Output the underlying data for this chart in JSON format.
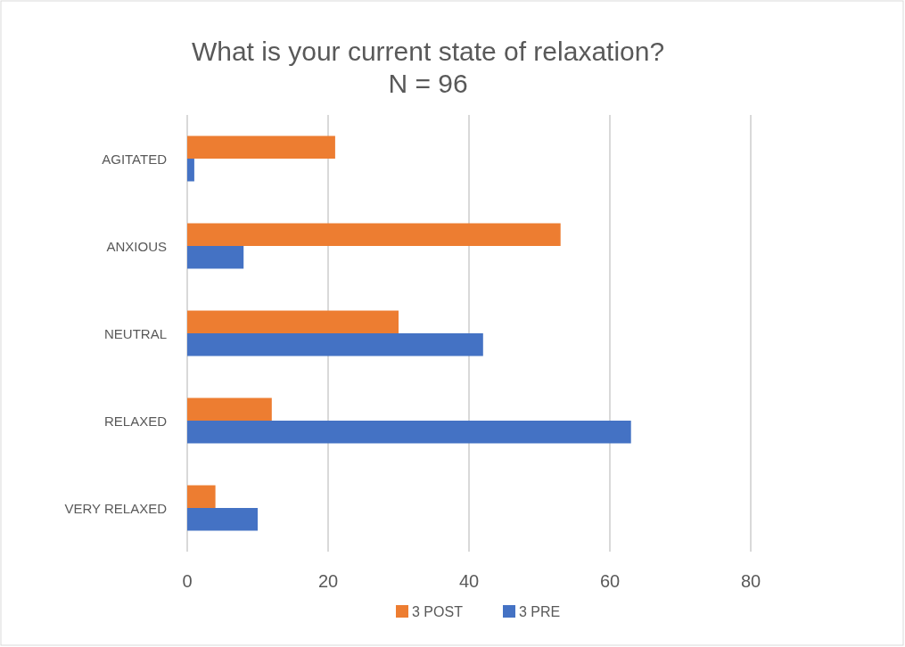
{
  "chart_data": {
    "type": "bar",
    "orientation": "horizontal",
    "title": "What is your current state of relaxation?\nN = 96",
    "categories": [
      "AGITATED",
      "ANXIOUS",
      "NEUTRAL",
      "RELAXED",
      "VERY RELAXED"
    ],
    "series": [
      {
        "name": "3 POST",
        "color": "#ed7d31",
        "values": [
          21,
          53,
          30,
          12,
          4
        ]
      },
      {
        "name": "3 PRE",
        "color": "#4472c4",
        "values": [
          1,
          8,
          42,
          63,
          10
        ]
      }
    ],
    "xlim": [
      0,
      80
    ],
    "xticks": [
      0,
      20,
      40,
      60,
      80
    ],
    "grid": "x",
    "legend": "bottom"
  }
}
